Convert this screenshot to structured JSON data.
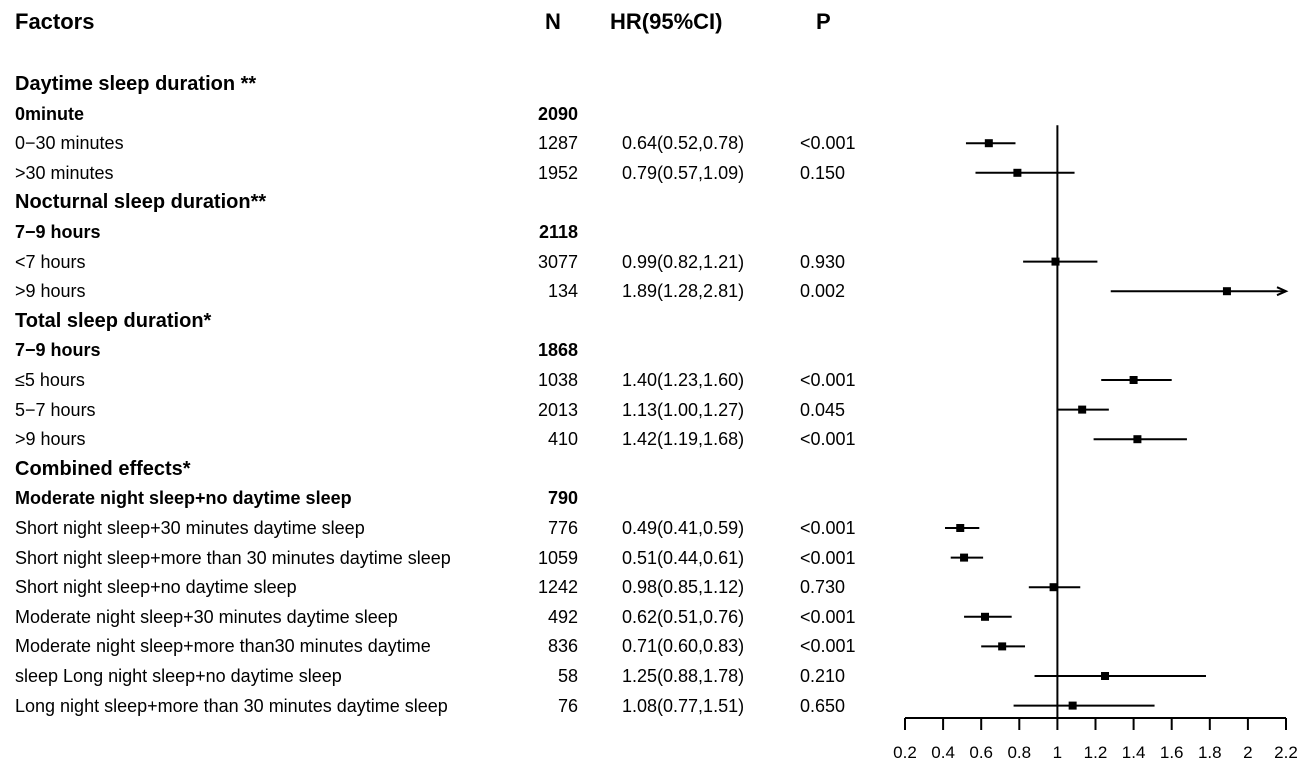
{
  "headers": {
    "factors": "Factors",
    "n": "N",
    "hr": "HR(95%CI)",
    "p": "P"
  },
  "rows": [
    {
      "type": "section",
      "label": "Daytime sleep duration **"
    },
    {
      "type": "ref",
      "label": "0minute",
      "n": "2090"
    },
    {
      "type": "data",
      "label": "0−30 minutes",
      "n": "1287",
      "hr_text": "0.64(0.52,0.78)",
      "p": "<0.001"
    },
    {
      "type": "data",
      "label": ">30 minutes",
      "n": "1952",
      "hr_text": "0.79(0.57,1.09)",
      "p": "0.150"
    },
    {
      "type": "section",
      "label": "Nocturnal sleep duration**"
    },
    {
      "type": "ref",
      "label": "7−9 hours",
      "n": "2118"
    },
    {
      "type": "data",
      "label": "<7 hours",
      "n": "3077",
      "hr_text": "0.99(0.82,1.21)",
      "p": "0.930"
    },
    {
      "type": "data",
      "label": ">9 hours",
      "n": "134",
      "hr_text": "1.89(1.28,2.81)",
      "p": "0.002"
    },
    {
      "type": "section",
      "label": "Total sleep duration*"
    },
    {
      "type": "ref",
      "label": "7−9 hours",
      "n": "1868"
    },
    {
      "type": "data",
      "label": "≤5 hours",
      "n": "1038",
      "hr_text": "1.40(1.23,1.60)",
      "p": "<0.001"
    },
    {
      "type": "data",
      "label": "5−7 hours",
      "n": "2013",
      "hr_text": "1.13(1.00,1.27)",
      "p": "0.045"
    },
    {
      "type": "data",
      "label": ">9 hours",
      "n": "410",
      "hr_text": "1.42(1.19,1.68)",
      "p": "<0.001"
    },
    {
      "type": "section",
      "label": "Combined effects*"
    },
    {
      "type": "ref",
      "label": "Moderate night sleep+no daytime sleep",
      "n": "790"
    },
    {
      "type": "data",
      "label": "Short night sleep+30 minutes daytime sleep",
      "n": "776",
      "hr_text": "0.49(0.41,0.59)",
      "p": "<0.001"
    },
    {
      "type": "data",
      "label": "Short night sleep+more than 30 minutes daytime sleep",
      "n": "1059",
      "hr_text": "0.51(0.44,0.61)",
      "p": "<0.001"
    },
    {
      "type": "data",
      "label": "Short night sleep+no daytime sleep",
      "n": "1242",
      "hr_text": "0.98(0.85,1.12)",
      "p": "0.730"
    },
    {
      "type": "data",
      "label": "Moderate night sleep+30 minutes daytime sleep",
      "n": "492",
      "hr_text": "0.62(0.51,0.76)",
      "p": "<0.001"
    },
    {
      "type": "data",
      "label": "Moderate night sleep+more than30 minutes daytime",
      "n": "836",
      "hr_text": "0.71(0.60,0.83)",
      "p": "<0.001"
    },
    {
      "type": "data",
      "label": "sleep Long night sleep+no daytime sleep",
      "n": "58",
      "hr_text": "1.25(0.88,1.78)",
      "p": "0.210"
    },
    {
      "type": "data",
      "label": "Long night sleep+more than 30 minutes daytime sleep",
      "n": "76",
      "hr_text": "1.08(0.77,1.51)",
      "p": "0.650"
    }
  ],
  "chart_data": {
    "type": "forest",
    "reference_line": 1,
    "xlim": [
      0.2,
      2.2
    ],
    "xticks": [
      "0.2",
      "0.4",
      "0.6",
      "0.8",
      "1",
      "1.2",
      "1.4",
      "1.6",
      "1.8",
      "2",
      "2.2"
    ],
    "estimates": [
      {
        "label": "0−30 minutes",
        "hr": 0.64,
        "lower": 0.52,
        "upper": 0.78
      },
      {
        "label": ">30 minutes",
        "hr": 0.79,
        "lower": 0.57,
        "upper": 1.09
      },
      {
        "label": "<7 hours",
        "hr": 0.99,
        "lower": 0.82,
        "upper": 1.21
      },
      {
        "label": ">9 hours",
        "hr": 1.89,
        "lower": 1.28,
        "upper": 2.81
      },
      {
        "label": "≤5 hours",
        "hr": 1.4,
        "lower": 1.23,
        "upper": 1.6
      },
      {
        "label": "5−7 hours",
        "hr": 1.13,
        "lower": 1.0,
        "upper": 1.27
      },
      {
        "label": ">9 hours",
        "hr": 1.42,
        "lower": 1.19,
        "upper": 1.68
      },
      {
        "label": "Short night sleep+30 minutes daytime sleep",
        "hr": 0.49,
        "lower": 0.41,
        "upper": 0.59
      },
      {
        "label": "Short night sleep+more than 30 minutes daytime sleep",
        "hr": 0.51,
        "lower": 0.44,
        "upper": 0.61
      },
      {
        "label": "Short night sleep+no daytime sleep",
        "hr": 0.98,
        "lower": 0.85,
        "upper": 1.12
      },
      {
        "label": "Moderate night sleep+30 minutes daytime sleep",
        "hr": 0.62,
        "lower": 0.51,
        "upper": 0.76
      },
      {
        "label": "Moderate night sleep+more than30 minutes daytime",
        "hr": 0.71,
        "lower": 0.6,
        "upper": 0.83
      },
      {
        "label": "sleep Long night sleep+no daytime sleep",
        "hr": 1.25,
        "lower": 0.88,
        "upper": 1.78
      },
      {
        "label": "Long night sleep+more than 30 minutes daytime sleep",
        "hr": 1.08,
        "lower": 0.77,
        "upper": 1.51
      }
    ]
  }
}
